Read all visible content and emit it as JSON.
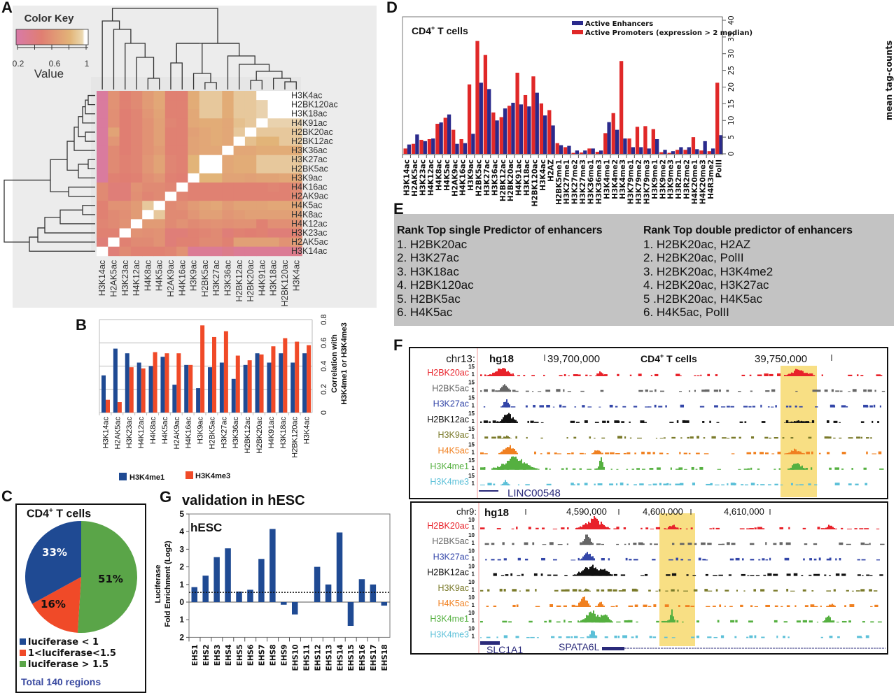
{
  "panels": {
    "A": "A",
    "B": "B",
    "C": "C",
    "D": "D",
    "E": "E",
    "F": "F",
    "G": "G"
  },
  "heatmap": {
    "color_key_title": "Color Key",
    "color_key_ticks": [
      "0.2",
      "0.6",
      "1"
    ],
    "color_key_label": "Value",
    "colors": {
      "low": "#d87aa8",
      "mid": "#e07e72",
      "high": "#e2c38a",
      "top": "#ffffff"
    }
  },
  "chart_data": [
    {
      "id": "A",
      "type": "heatmap",
      "title": "Color Key",
      "legend": "top-left",
      "value_range": [
        0.2,
        1
      ],
      "columns": [
        "H3K14ac",
        "H2AK5ac",
        "H3K23ac",
        "H4K12ac",
        "H4K8ac",
        "H4K5ac",
        "H2AK9ac",
        "H4K16ac",
        "H3K9ac",
        "H2BK5ac",
        "H3K27ac",
        "H3K36ac",
        "H2BK12ac",
        "H2BK20ac",
        "H4K91ac",
        "H3K18ac",
        "H2BK120ac",
        "H3K4ac"
      ],
      "rows": [
        "H3K4ac",
        "H2BK120ac",
        "H3K18ac",
        "H4K91ac",
        "H2BK20ac",
        "H2BK12ac",
        "H3K36ac",
        "H3K27ac",
        "H2BK5ac",
        "H3K9ac",
        "H4K16ac",
        "H2AK9ac",
        "H4K5ac",
        "H4K8ac",
        "H4K12ac",
        "H3K23ac",
        "H2AK5ac",
        "H3K14ac"
      ],
      "values": [
        [
          0.25,
          0.6,
          0.5,
          0.55,
          0.65,
          0.72,
          0.5,
          0.5,
          0.75,
          0.88,
          0.88,
          0.75,
          0.88,
          0.88,
          1,
          1,
          1,
          1
        ],
        [
          0.25,
          0.6,
          0.5,
          0.55,
          0.65,
          0.72,
          0.5,
          0.5,
          0.75,
          0.88,
          0.88,
          0.75,
          0.88,
          0.88,
          0.92,
          1,
          1,
          1
        ],
        [
          0.25,
          0.58,
          0.48,
          0.52,
          0.62,
          0.7,
          0.5,
          0.5,
          0.73,
          0.88,
          0.88,
          0.75,
          0.88,
          0.88,
          0.92,
          1,
          1,
          1
        ],
        [
          0.25,
          0.58,
          0.48,
          0.52,
          0.6,
          0.68,
          0.52,
          0.5,
          0.73,
          0.75,
          0.75,
          0.72,
          0.85,
          0.88,
          1,
          0.92,
          0.92,
          0.92
        ],
        [
          0.25,
          0.7,
          0.48,
          0.52,
          0.6,
          0.68,
          0.5,
          0.5,
          0.68,
          0.72,
          0.75,
          0.72,
          0.88,
          1,
          0.88,
          0.88,
          0.88,
          0.88
        ],
        [
          0.25,
          0.62,
          0.48,
          0.52,
          0.6,
          0.68,
          0.5,
          0.5,
          0.7,
          0.72,
          0.75,
          0.72,
          1,
          0.85,
          0.8,
          0.8,
          0.88,
          0.88
        ],
        [
          0.25,
          0.55,
          0.48,
          0.52,
          0.6,
          0.65,
          0.5,
          0.5,
          0.7,
          0.72,
          0.72,
          1,
          0.72,
          0.72,
          0.75,
          0.75,
          0.75,
          0.75
        ],
        [
          0.25,
          0.55,
          0.5,
          0.52,
          0.62,
          0.7,
          0.52,
          0.5,
          0.8,
          1,
          1,
          0.72,
          0.75,
          0.75,
          0.88,
          0.88,
          0.88,
          0.88
        ],
        [
          0.25,
          0.55,
          0.5,
          0.52,
          0.62,
          0.7,
          0.52,
          0.5,
          0.8,
          1,
          1,
          0.72,
          0.75,
          0.75,
          0.88,
          0.88,
          0.88,
          0.88
        ],
        [
          0.25,
          0.5,
          0.48,
          0.5,
          0.58,
          0.62,
          0.5,
          0.48,
          1,
          0.8,
          0.8,
          0.7,
          0.7,
          0.68,
          0.7,
          0.7,
          0.72,
          0.72
        ],
        [
          0.55,
          0.45,
          0.45,
          0.6,
          0.55,
          0.55,
          0.52,
          1,
          0.5,
          0.5,
          0.5,
          0.5,
          0.5,
          0.5,
          0.5,
          0.52,
          0.5,
          0.55
        ],
        [
          0.55,
          0.45,
          0.45,
          0.58,
          0.52,
          0.55,
          1,
          0.52,
          0.5,
          0.5,
          0.5,
          0.5,
          0.5,
          0.5,
          0.5,
          0.5,
          0.5,
          0.55
        ],
        [
          0.5,
          0.6,
          0.6,
          0.65,
          0.88,
          1,
          0.55,
          0.58,
          0.65,
          0.7,
          0.72,
          0.65,
          0.7,
          0.7,
          0.7,
          0.72,
          0.72,
          0.72
        ],
        [
          0.5,
          0.55,
          0.58,
          0.65,
          1,
          0.88,
          0.55,
          0.55,
          0.62,
          0.68,
          0.68,
          0.62,
          0.65,
          0.68,
          0.68,
          0.68,
          0.68,
          0.68
        ],
        [
          0.52,
          0.55,
          0.6,
          1,
          0.65,
          0.65,
          0.55,
          0.6,
          0.55,
          0.58,
          0.6,
          0.58,
          0.6,
          0.6,
          0.5,
          0.58,
          0.58,
          0.6
        ],
        [
          0.5,
          0.5,
          1,
          0.6,
          0.58,
          0.6,
          0.45,
          0.45,
          0.5,
          0.52,
          0.55,
          0.45,
          0.5,
          0.48,
          0.5,
          0.45,
          0.45,
          0.5
        ],
        [
          0.45,
          1,
          0.5,
          0.55,
          0.55,
          0.6,
          0.45,
          0.5,
          0.5,
          0.55,
          0.55,
          0.5,
          0.68,
          0.68,
          0.68,
          0.68,
          0.6,
          0.65
        ],
        [
          1,
          0.45,
          0.55,
          0.5,
          0.5,
          0.5,
          0.52,
          0.6,
          0.3,
          0.3,
          0.3,
          0.35,
          0.3,
          0.3,
          0.3,
          0.3,
          0.3,
          0.35
        ]
      ]
    },
    {
      "id": "B",
      "type": "bar",
      "categories": [
        "H3K14ac",
        "H2AK5ac",
        "H3K23ac",
        "H4K12ac",
        "H4K8ac",
        "H4K5ac",
        "H2AK9ac",
        "H4K16ac",
        "H3K9ac",
        "H2BK5ac",
        "H3K27ac",
        "H3K36ac",
        "H2BK12ac",
        "H2BK20ac",
        "H4K91ac",
        "H3K18ac",
        "H2BK120ac",
        "H3K4ac"
      ],
      "series": [
        {
          "name": "H3K4me1",
          "color": "#1f4a93",
          "values": [
            0.32,
            0.55,
            0.51,
            0.43,
            0.4,
            0.48,
            0.24,
            0.41,
            0.21,
            0.39,
            0.43,
            0.29,
            0.41,
            0.51,
            0.43,
            0.51,
            0.43,
            0.51
          ]
        },
        {
          "name": "H3K4me3",
          "color": "#f04a28",
          "values": [
            0.11,
            0.09,
            0.39,
            0.38,
            0.52,
            0.51,
            0.51,
            0.41,
            0.75,
            0.65,
            0.7,
            0.49,
            0.45,
            0.5,
            0.57,
            0.64,
            0.61,
            0.58
          ]
        }
      ],
      "ylabel": "Correlation with H3K4me1 or H3K4me3",
      "yticks": [
        "0",
        "0.2",
        "0.4",
        "0.6",
        "0.8"
      ],
      "ylim": [
        0,
        0.8
      ],
      "grid": true,
      "legend": "bottom"
    },
    {
      "id": "C",
      "type": "pie",
      "title": "CD4+ T cells",
      "slices": [
        {
          "label": "luciferase < 1",
          "value": 33,
          "text": "33%",
          "color": "#1f4a93"
        },
        {
          "label": "1<luciferase<1.5",
          "value": 16,
          "text": "16%",
          "color": "#f04a28"
        },
        {
          "label": "luciferase > 1.5",
          "value": 51,
          "text": "51%",
          "color": "#5aa548"
        }
      ],
      "footer": "Total 140 regions",
      "legend": "bottom"
    },
    {
      "id": "D",
      "type": "bar",
      "title": "CD4+ T cells",
      "categories": [
        "H3K14ac",
        "H2AK5ac",
        "H3K23ac",
        "H4K12ac",
        "H4K8ac",
        "H4K5ac",
        "H2AK9ac",
        "H4K16ac",
        "H3K9ac",
        "H2BK5ac",
        "H3K27ac",
        "H3K36ac",
        "H2BK12ac",
        "H2BK20ac",
        "H4K91ac",
        "H3K18ac",
        "H2BK120ac",
        "H3K4ac",
        "H2AZ",
        "H2BK5me1",
        "H3K27me1",
        "H3K27me2",
        "H3K27me3",
        "H3K36me1",
        "H3K36me3",
        "H3K4me1",
        "H3K4me2",
        "H3K4me3",
        "H3K79me1",
        "H3K79me2",
        "H3K79me3",
        "H3K9me1",
        "H3K9me2",
        "H3K9me3",
        "H3R2me1",
        "H3R2me2",
        "H4K20me1",
        "H4K20me3",
        "H4R3me2",
        "PolII"
      ],
      "series": [
        {
          "name": "Active Enhancers",
          "color": "#2a2a8c",
          "values": [
            2.8,
            5.8,
            3.8,
            4.6,
            9.4,
            11.8,
            3.0,
            3.2,
            6.0,
            21.3,
            19.4,
            10.0,
            13.6,
            15.3,
            14.8,
            14.2,
            18.3,
            11.5,
            8.5,
            2.6,
            2.4,
            1.0,
            1.0,
            1.6,
            1.0,
            9.5,
            7.2,
            4.6,
            2.0,
            2.0,
            1.6,
            4.4,
            1.2,
            0.8,
            2.0,
            2.0,
            1.4,
            3.8,
            1.6,
            5.6
          ]
        },
        {
          "name": "Active Promoters (expression > 2 median)",
          "color": "#e02828",
          "values": [
            1.6,
            3.0,
            4.2,
            4.4,
            9.0,
            10.8,
            7.2,
            4.4,
            20.8,
            33.8,
            29.6,
            12.4,
            11.0,
            14.4,
            24.3,
            17.6,
            23.2,
            15.1,
            13.1,
            3.2,
            2.0,
            0.3,
            0.4,
            1.6,
            0.6,
            6.2,
            12.2,
            27.8,
            4.6,
            8.1,
            8.3,
            7.4,
            0.5,
            0.3,
            1.2,
            1.2,
            5.0,
            1.0,
            0.8,
            21.3
          ]
        }
      ],
      "ylabel": "mean tag-counts",
      "yticks": [
        "0",
        "5",
        "10",
        "15",
        "20",
        "25",
        "30",
        "35",
        "40"
      ],
      "ylim": [
        0,
        40
      ],
      "legend": "top-center"
    },
    {
      "id": "G",
      "type": "bar",
      "title": "validation in hESC",
      "subtitle": "hESC",
      "categories": [
        "EHS1",
        "EHS2",
        "EHS3",
        "EHS4",
        "EHS5",
        "EHS6",
        "EHS7",
        "EHS8",
        "EHS9",
        "EHS10",
        "EHS11",
        "EHS12",
        "EHS13",
        "EHS14",
        "EHS15",
        "EHS16",
        "EHS17",
        "EHS18"
      ],
      "values": [
        0.85,
        1.5,
        2.55,
        3.05,
        0.6,
        0.7,
        2.45,
        4.15,
        -0.15,
        -0.7,
        0.0,
        2.0,
        1.0,
        3.95,
        -1.35,
        1.3,
        1.0,
        -0.2
      ],
      "threshold": 0.55,
      "ylabel": "Luciferase Fold Enrichment (Log2)",
      "yticks": [
        "5",
        "4",
        "3",
        "2",
        "1",
        "0",
        "1",
        "2"
      ],
      "ylim": [
        -2,
        5
      ],
      "color": "#1f4a93"
    }
  ],
  "panelE": {
    "left_header": "Rank Top single Predictor of enhancers",
    "left_items": [
      "1. H2BK20ac",
      "2. H3K27ac",
      "3. H3K18ac",
      "4. H2BK120ac",
      "5. H2BK5ac",
      "6. H4K5ac"
    ],
    "right_header": "Rank Top double predictor of enhancers",
    "right_items": [
      "1. H2BK20ac, H2AZ",
      "2. H2BK20ac, PolII",
      "3. H2BK20ac, H3K4me2",
      "4. H2BK20ac, H3K27ac",
      "5 .H2BK20ac, H4K5ac",
      "6. H4K5ac,  PolII"
    ]
  },
  "panelF": {
    "track1": {
      "chrom": "chr13:",
      "assembly": "hg18",
      "coord1": "39,700,000",
      "cell": "CD4+ T cells",
      "coord2": "39,750,000",
      "scale_max": "15",
      "scale_min": "1",
      "gene": "LINC00548"
    },
    "track2": {
      "chrom": "chr9:",
      "assembly": "hg18",
      "coord1": "4,590,000",
      "coord2": "4,600,000",
      "coord3": "4,610,000",
      "scale_max": "10",
      "scale_min": "1",
      "gene1": "SLC1A1",
      "gene2": "SPATA6L"
    },
    "tracks": [
      {
        "name": "H2BK20ac",
        "color": "#e8222a"
      },
      {
        "name": "H2BK5ac",
        "color": "#666666"
      },
      {
        "name": "H3K27ac",
        "color": "#3346a8"
      },
      {
        "name": "H2BK12ac",
        "color": "#111111"
      },
      {
        "name": "H3K9ac",
        "color": "#7a7a2a"
      },
      {
        "name": "H4K5ac",
        "color": "#f08020"
      },
      {
        "name": "H3K4me1",
        "color": "#55b040"
      },
      {
        "name": "H3K4me3",
        "color": "#5cc0d8"
      }
    ],
    "highlight_color": "#f8df84"
  }
}
